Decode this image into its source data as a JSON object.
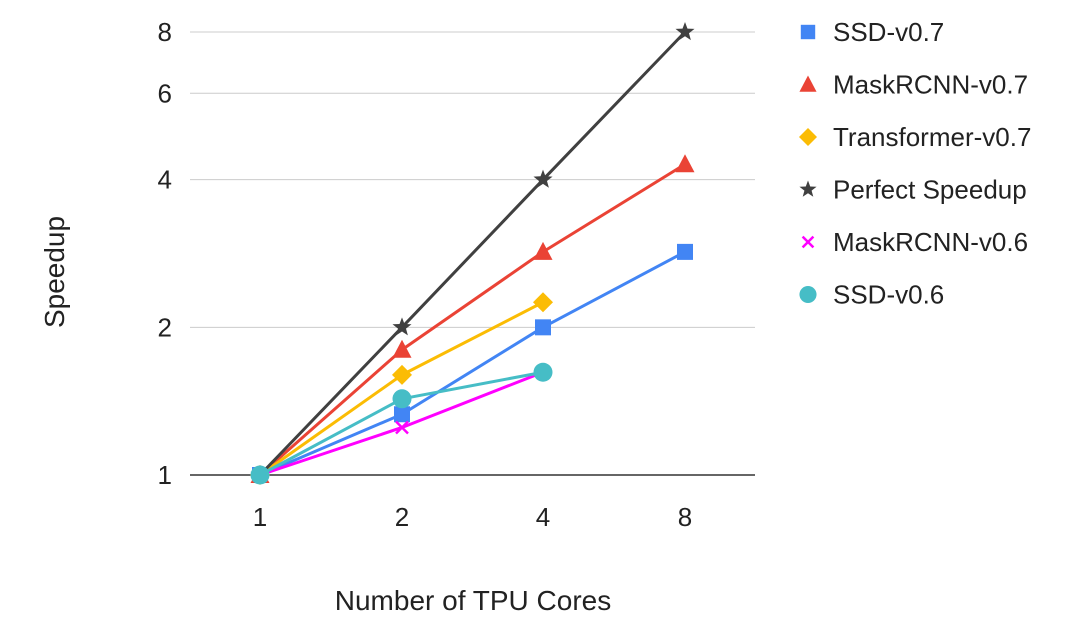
{
  "chart_data": {
    "type": "line",
    "xlabel": "Number of TPU Cores",
    "ylabel": "Speedup",
    "x_scale": "log2",
    "y_scale": "log2",
    "x_ticks": [
      1,
      2,
      4,
      8
    ],
    "y_ticks": [
      1,
      2,
      4,
      6,
      8
    ],
    "xlim": [
      0.7,
      11
    ],
    "ylim": [
      1,
      8
    ],
    "grid": "horizontal",
    "legend_position": "right",
    "series": [
      {
        "name": "SSD-v0.7",
        "color": "#4285F4",
        "marker": "square",
        "x": [
          1,
          2,
          4,
          8
        ],
        "y": [
          1,
          1.33,
          2,
          2.85
        ]
      },
      {
        "name": "MaskRCNN-v0.7",
        "color": "#EA4335",
        "marker": "triangle",
        "x": [
          1,
          2,
          4,
          8
        ],
        "y": [
          1,
          1.8,
          2.85,
          4.3
        ]
      },
      {
        "name": "Transformer-v0.7",
        "color": "#FBBC04",
        "marker": "diamond",
        "x": [
          1,
          2,
          4
        ],
        "y": [
          1,
          1.6,
          2.25
        ]
      },
      {
        "name": "Perfect Speedup",
        "color": "#404040",
        "marker": "star",
        "x": [
          1,
          2,
          4,
          8
        ],
        "y": [
          1,
          2,
          4,
          8
        ]
      },
      {
        "name": "MaskRCNN-v0.6",
        "color": "#FF00FF",
        "marker": "cross",
        "x": [
          1,
          2,
          4
        ],
        "y": [
          1,
          1.25,
          1.62
        ]
      },
      {
        "name": "SSD-v0.6",
        "color": "#46BDC6",
        "marker": "circle",
        "x": [
          1,
          2,
          4
        ],
        "y": [
          1,
          1.43,
          1.62
        ]
      }
    ]
  }
}
